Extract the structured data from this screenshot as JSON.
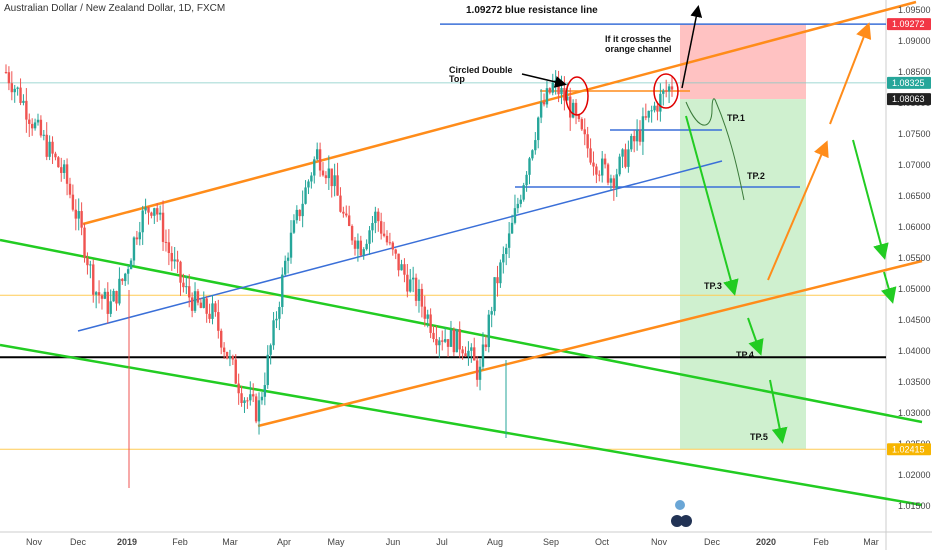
{
  "header": {
    "title": "Australian Dollar / New Zealand Dollar, 1D, FXCM"
  },
  "colors": {
    "up": "#26a69a",
    "down": "#ef5350",
    "orange": "#ff8c1a",
    "green": "#22cc22",
    "blue": "#3a6fd8",
    "black": "#000000",
    "yellow": "#ffcc55",
    "red_zone": "#ffb3b3",
    "green_zone": "#c3ecc3"
  },
  "chart_data": {
    "type": "candlestick",
    "title": "Australian Dollar / New Zealand Dollar, 1D, FXCM",
    "xlabel": "",
    "ylabel": "",
    "x_ticks": [
      "Nov",
      "Dec",
      "2019",
      "Feb",
      "Mar",
      "Apr",
      "May",
      "Jun",
      "Jul",
      "Aug",
      "Sep",
      "Oct",
      "Nov",
      "Dec",
      "2020",
      "Feb",
      "Mar"
    ],
    "y_ticks": [
      "1.09500",
      "1.09000",
      "1.08500",
      "1.08000",
      "1.07500",
      "1.07000",
      "1.06500",
      "1.06000",
      "1.05500",
      "1.05000",
      "1.04500",
      "1.04000",
      "1.03500",
      "1.03000",
      "1.02500",
      "1.02000",
      "1.01500"
    ],
    "ylim": [
      1.0125,
      1.0975
    ],
    "price_tags": [
      {
        "label": "1.09272",
        "value": 1.09272,
        "color": "#f23645"
      },
      {
        "label": "1.08325",
        "value": 1.08325,
        "color": "#26a69a"
      },
      {
        "label": "1.08063",
        "value": 1.08063,
        "color": "#222222"
      },
      {
        "label": "1.02415",
        "value": 1.02415,
        "color": "#f7b500"
      }
    ],
    "price_path": [
      [
        "Nov",
        1.085
      ],
      [
        "Nov",
        1.081
      ],
      [
        "Nov",
        1.076
      ],
      [
        "Nov",
        1.072
      ],
      [
        "Nov",
        1.068
      ],
      [
        "Dec",
        1.06
      ],
      [
        "Dec",
        1.05
      ],
      [
        "Dec",
        1.047
      ],
      [
        "2019",
        1.052
      ],
      [
        "2019",
        1.061
      ],
      [
        "2019",
        1.064
      ],
      [
        "2019",
        1.056
      ],
      [
        "Feb",
        1.05
      ],
      [
        "Feb",
        1.047
      ],
      [
        "Feb",
        1.046
      ],
      [
        "Mar",
        1.039
      ],
      [
        "Mar",
        1.033
      ],
      [
        "Mar",
        1.03
      ],
      [
        "Apr",
        1.042
      ],
      [
        "Apr",
        1.056
      ],
      [
        "Apr",
        1.064
      ],
      [
        "Apr",
        1.072
      ],
      [
        "May",
        1.068
      ],
      [
        "May",
        1.06
      ],
      [
        "May",
        1.057
      ],
      [
        "Jun",
        1.062
      ],
      [
        "Jun",
        1.056
      ],
      [
        "Jun",
        1.052
      ],
      [
        "Jul",
        1.048
      ],
      [
        "Jul",
        1.043
      ],
      [
        "Jul",
        1.042
      ],
      [
        "Aug",
        1.041
      ],
      [
        "Aug",
        1.036
      ],
      [
        "Aug",
        1.05
      ],
      [
        "Aug",
        1.058
      ],
      [
        "Sep",
        1.068
      ],
      [
        "Sep",
        1.078
      ],
      [
        "Sep",
        1.083
      ],
      [
        "Sep",
        1.08
      ],
      [
        "Oct",
        1.074
      ],
      [
        "Oct",
        1.07
      ],
      [
        "Oct",
        1.068
      ],
      [
        "Oct",
        1.072
      ],
      [
        "Nov",
        1.076
      ],
      [
        "Nov",
        1.08
      ],
      [
        "Nov",
        1.083
      ]
    ],
    "zones": [
      {
        "name": "stop",
        "y_top": 1.09272,
        "y_bottom": 1.08063
      },
      {
        "name": "target",
        "y_top": 1.08063,
        "y_bottom": 1.02415
      }
    ],
    "horizontal_levels": [
      {
        "name": "resistance-line",
        "value": 1.09272,
        "color": "#3a6fd8"
      },
      {
        "name": "black-support",
        "value": 1.039,
        "color": "#000000"
      },
      {
        "name": "yellow-upper",
        "value": 1.049,
        "color": "#ffcc55"
      },
      {
        "name": "yellow-lower",
        "value": 1.02415,
        "color": "#ffcc55"
      }
    ],
    "annotations": [
      "1.09272 blue resistance line",
      "If it crosses the",
      "orange channel",
      "Circled Double",
      "Top",
      "TP.1",
      "TP.2",
      "TP.3",
      "TP.4",
      "TP.5"
    ],
    "grid": false,
    "legend": "none"
  }
}
